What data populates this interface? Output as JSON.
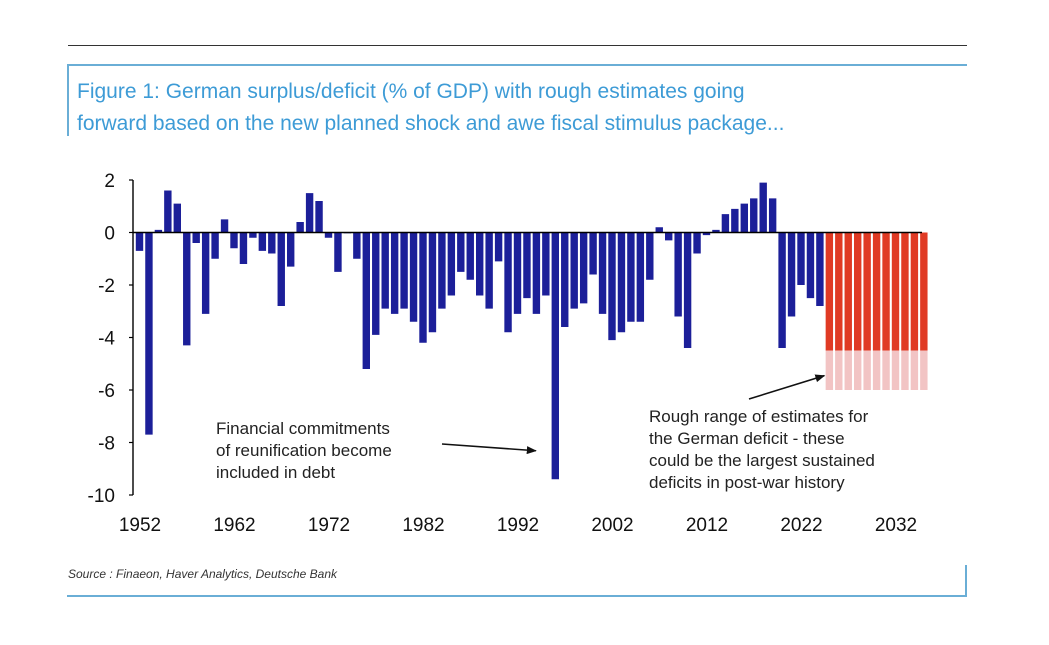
{
  "header": {
    "title_line1": "Figure 1: German surplus/deficit (% of GDP) with rough estimates going",
    "title_line2": "forward based on the new planned shock and awe fiscal stimulus package..."
  },
  "footer": {
    "source": "Source : Finaeon, Haver Analytics, Deutsche Bank"
  },
  "chart_data": {
    "type": "bar",
    "title": "Figure 1: German surplus/deficit (% of GDP) with rough estimates going forward based on the new planned shock and awe fiscal stimulus package...",
    "xlabel": "",
    "ylabel": "",
    "ylim": [
      -10,
      2
    ],
    "yticks": [
      "2",
      "0",
      "-2",
      "-4",
      "-6",
      "-8",
      "-10"
    ],
    "xticks": [
      "1952",
      "1962",
      "1972",
      "1982",
      "1992",
      "2002",
      "2012",
      "2022",
      "2032"
    ],
    "grid": false,
    "colors": {
      "history": "#1c1f99",
      "estimate_core": "#e03a24",
      "estimate_range": "#f2c4c4",
      "axis": "#000000"
    },
    "series": [
      {
        "name": "history",
        "x": [
          1952,
          1953,
          1954,
          1955,
          1956,
          1957,
          1958,
          1959,
          1960,
          1961,
          1962,
          1963,
          1964,
          1965,
          1966,
          1967,
          1968,
          1969,
          1970,
          1971,
          1972,
          1973,
          1974,
          1975,
          1976,
          1977,
          1978,
          1979,
          1980,
          1981,
          1982,
          1983,
          1984,
          1985,
          1986,
          1987,
          1988,
          1989,
          1990,
          1991,
          1992,
          1993,
          1994,
          1995,
          1996,
          1997,
          1998,
          1999,
          2000,
          2001,
          2002,
          2003,
          2004,
          2005,
          2006,
          2007,
          2008,
          2009,
          2010,
          2011,
          2012,
          2013,
          2014,
          2015,
          2016,
          2017,
          2018,
          2019,
          2020,
          2021,
          2022,
          2023,
          2024
        ],
        "values": [
          -0.7,
          -7.7,
          0.1,
          1.6,
          1.1,
          -4.3,
          -0.4,
          -3.1,
          -1.0,
          0.5,
          -0.6,
          -1.2,
          -0.2,
          -0.7,
          -0.8,
          -2.8,
          -1.3,
          0.4,
          1.5,
          1.2,
          -0.2,
          -1.5,
          0.0,
          -1.0,
          -5.2,
          -3.9,
          -2.9,
          -3.1,
          -2.9,
          -3.4,
          -4.2,
          -3.8,
          -2.9,
          -2.4,
          -1.5,
          -1.8,
          -2.4,
          -2.9,
          -1.1,
          -3.8,
          -3.1,
          -2.5,
          -3.1,
          -2.4,
          -9.4,
          -3.6,
          -2.9,
          -2.7,
          -1.6,
          -3.1,
          -4.1,
          -3.8,
          -3.4,
          -3.4,
          -1.8,
          0.2,
          -0.3,
          -3.2,
          -4.4,
          -0.8,
          -0.1,
          0.1,
          0.7,
          0.9,
          1.1,
          1.3,
          1.9,
          1.3,
          -4.4,
          -3.2,
          -2.0,
          -2.5,
          -2.8
        ]
      },
      {
        "name": "estimate",
        "x": [
          2025,
          2026,
          2027,
          2028,
          2029,
          2030,
          2031,
          2032,
          2033,
          2034,
          2035
        ],
        "values_high": [
          -4.5,
          -4.5,
          -4.5,
          -4.5,
          -4.5,
          -4.5,
          -4.5,
          -4.5,
          -4.5,
          -4.5,
          -4.5
        ],
        "values_low": [
          -6.0,
          -6.0,
          -6.0,
          -6.0,
          -6.0,
          -6.0,
          -6.0,
          -6.0,
          -6.0,
          -6.0,
          -6.0
        ]
      }
    ],
    "annotations": [
      {
        "lines": [
          "Financial commitments",
          "of reunification become",
          "included in debt"
        ],
        "target": {
          "x": 1995,
          "y": -8.2
        }
      },
      {
        "lines": [
          "Rough range of estimates for",
          "the German deficit - these",
          "could be the largest sustained",
          "deficits in post-war history"
        ],
        "target": {
          "x": 2025,
          "y": -5.3
        }
      }
    ]
  }
}
